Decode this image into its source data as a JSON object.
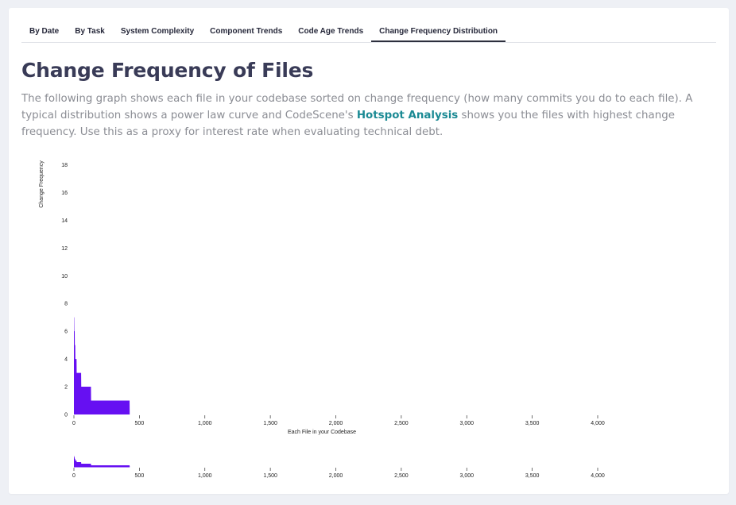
{
  "tabs": [
    {
      "label": "By Date"
    },
    {
      "label": "By Task"
    },
    {
      "label": "System Complexity"
    },
    {
      "label": "Component Trends"
    },
    {
      "label": "Code Age Trends"
    },
    {
      "label": "Change Frequency Distribution",
      "active": true
    }
  ],
  "page": {
    "title": "Change Frequency of Files",
    "description_before": "The following graph shows each file in your codebase sorted on change frequency (how many commits you do to each file). A typical distribution shows a power law curve and CodeScene's ",
    "description_link": "Hotspot Analysis",
    "description_after": " shows you the files with highest change frequency. Use this as a proxy for interest rate when evaluating technical debt."
  },
  "colors": {
    "area_fill": "#6610f2",
    "accent_link": "#1b8a94"
  },
  "chart_data": {
    "type": "area",
    "xlabel": "Each File in your Codebase",
    "ylabel": "Change Frequency",
    "xlim": [
      0,
      4000
    ],
    "ylim": [
      0,
      19
    ],
    "x_ticks": [
      0,
      500,
      1000,
      1500,
      2000,
      2500,
      3000,
      3500,
      4000
    ],
    "x_tick_labels": [
      "0",
      "500",
      "1,000",
      "1,500",
      "2,000",
      "2,500",
      "3,000",
      "3,500",
      "4,000"
    ],
    "y_ticks": [
      0,
      2,
      4,
      6,
      8,
      10,
      12,
      14,
      16,
      18
    ],
    "grid": false,
    "points": [
      [
        0,
        7
      ],
      [
        2,
        7
      ],
      [
        3,
        6
      ],
      [
        6,
        6
      ],
      [
        7,
        5
      ],
      [
        10,
        5
      ],
      [
        11,
        4
      ],
      [
        20,
        4
      ],
      [
        21,
        3
      ],
      [
        55,
        3
      ],
      [
        56,
        2
      ],
      [
        130,
        2
      ],
      [
        131,
        1
      ],
      [
        425,
        1
      ],
      [
        426,
        0
      ]
    ],
    "overview": {
      "type": "area",
      "description": "brush / context view of the same distribution",
      "x_ticks": [
        0,
        500,
        1000,
        1500,
        2000,
        2500,
        3000,
        3500,
        4000
      ],
      "x_tick_labels": [
        "0",
        "500",
        "1,000",
        "1,500",
        "2,000",
        "2,500",
        "3,000",
        "3,500",
        "4,000"
      ]
    }
  }
}
